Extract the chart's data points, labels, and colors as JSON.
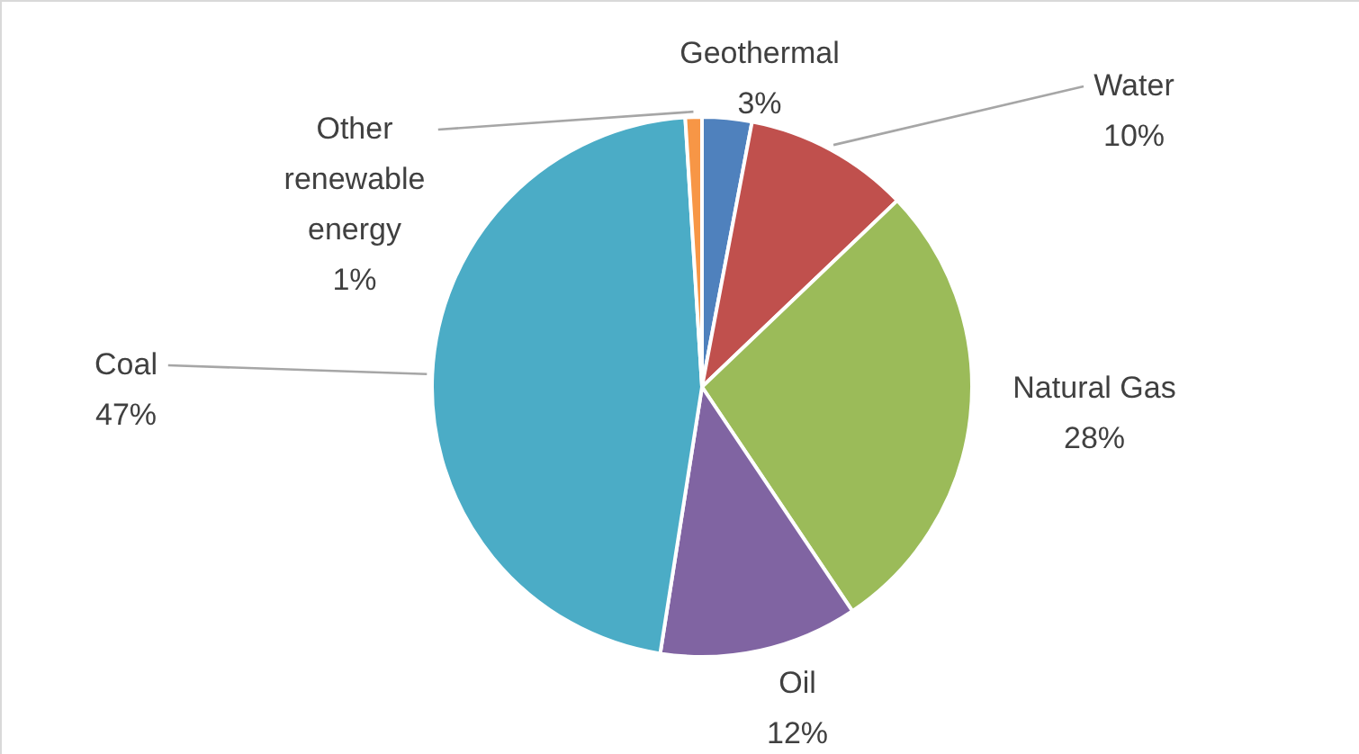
{
  "chart_data": {
    "type": "pie",
    "categories": [
      "Geothermal",
      "Water",
      "Natural Gas",
      "Oil",
      "Coal",
      "Other renewable energy"
    ],
    "values": [
      3,
      10,
      28,
      12,
      47,
      1
    ],
    "value_labels": [
      "3%",
      "10%",
      "28%",
      "12%",
      "47%",
      "1%"
    ],
    "colors": [
      "#4f81bd",
      "#c0504d",
      "#9bbb59",
      "#8064a2",
      "#4bacc6",
      "#f79646"
    ]
  }
}
